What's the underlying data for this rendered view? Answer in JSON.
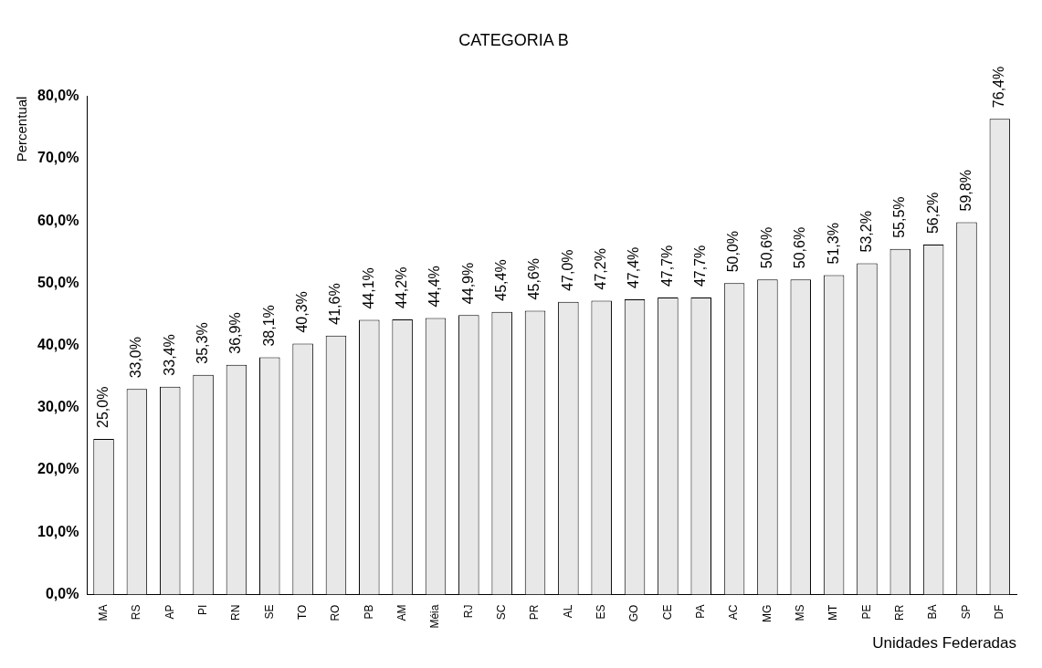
{
  "chart_data": {
    "type": "bar",
    "title": "CATEGORIA B",
    "xlabel": "Unidades Federadas",
    "ylabel": "Percentual",
    "categories": [
      "MA",
      "RS",
      "AP",
      "PI",
      "RN",
      "SE",
      "TO",
      "RO",
      "PB",
      "AM",
      "Méia",
      "RJ",
      "SC",
      "PR",
      "AL",
      "ES",
      "GO",
      "CE",
      "PA",
      "AC",
      "MG",
      "MS",
      "MT",
      "PE",
      "RR",
      "BA",
      "SP",
      "DF"
    ],
    "values": [
      25.0,
      33.0,
      33.4,
      35.3,
      36.9,
      38.1,
      40.3,
      41.6,
      44.1,
      44.2,
      44.4,
      44.9,
      45.4,
      45.6,
      47.0,
      47.2,
      47.4,
      47.7,
      47.7,
      50.0,
      50.6,
      50.6,
      51.3,
      53.2,
      55.5,
      56.2,
      59.8,
      76.4
    ],
    "value_labels": [
      "25,0%",
      "33,0%",
      "33,4%",
      "35,3%",
      "36,9%",
      "38,1%",
      "40,3%",
      "41,6%",
      "44,1%",
      "44,2%",
      "44,4%",
      "44,9%",
      "45,4%",
      "45,6%",
      "47,0%",
      "47,2%",
      "47,4%",
      "47,7%",
      "47,7%",
      "50,0%",
      "50,6%",
      "50,6%",
      "51,3%",
      "53,2%",
      "55,5%",
      "56,2%",
      "59,8%",
      "76,4%"
    ],
    "color": "#e8e8e8",
    "ylim": [
      0,
      80
    ],
    "yticks": [
      {
        "value": 0,
        "label": "0,0%"
      },
      {
        "value": 10,
        "label": "10,0%"
      },
      {
        "value": 20,
        "label": "20,0%"
      },
      {
        "value": 30,
        "label": "30,0%"
      },
      {
        "value": 40,
        "label": "40,0%"
      },
      {
        "value": 50,
        "label": "50,0%"
      },
      {
        "value": 60,
        "label": "60,0%"
      },
      {
        "value": 70,
        "label": "70,0%"
      },
      {
        "value": 80,
        "label": "80,0%"
      }
    ],
    "grid": false,
    "legend": false
  }
}
